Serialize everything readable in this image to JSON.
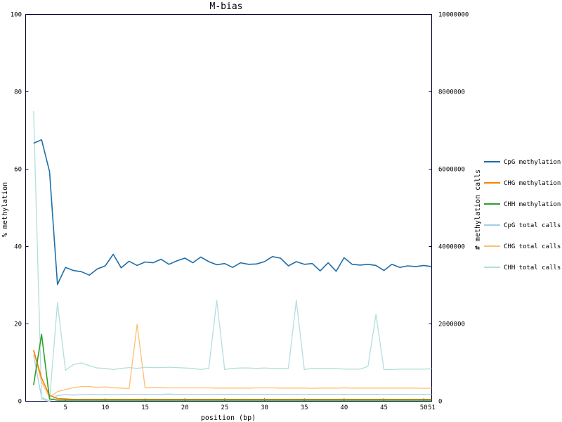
{
  "chart_data": {
    "type": "line",
    "title": "M-bias",
    "xlabel": "position (bp)",
    "ylabel": "% methylation",
    "y2label": "# methylation calls",
    "xlim": [
      0,
      51
    ],
    "ylim": [
      0,
      100
    ],
    "y2lim": [
      0,
      10000000
    ],
    "xticks": [
      {
        "value": 5,
        "label": "5"
      },
      {
        "value": 10,
        "label": "10"
      },
      {
        "value": 15,
        "label": "15"
      },
      {
        "value": 20,
        "label": "20"
      },
      {
        "value": 25,
        "label": "25"
      },
      {
        "value": 30,
        "label": "30"
      },
      {
        "value": 35,
        "label": "35"
      },
      {
        "value": 40,
        "label": "40"
      },
      {
        "value": 45,
        "label": "45"
      },
      {
        "value": 50,
        "label": "50"
      },
      {
        "value": 51,
        "label": "51"
      }
    ],
    "yticks": [
      {
        "value": 0,
        "label": "0"
      },
      {
        "value": 20,
        "label": "20"
      },
      {
        "value": 40,
        "label": "40"
      },
      {
        "value": 60,
        "label": "60"
      },
      {
        "value": 80,
        "label": "80"
      },
      {
        "value": 100,
        "label": "100"
      }
    ],
    "y2ticks": [
      {
        "value": 0,
        "label": "0"
      },
      {
        "value": 2000000,
        "label": "2000000"
      },
      {
        "value": 4000000,
        "label": "4000000"
      },
      {
        "value": 6000000,
        "label": "6000000"
      },
      {
        "value": 8000000,
        "label": "8000000"
      },
      {
        "value": 10000000,
        "label": "10000000"
      }
    ],
    "x": [
      1,
      2,
      3,
      4,
      5,
      6,
      7,
      8,
      9,
      10,
      11,
      12,
      13,
      14,
      15,
      16,
      17,
      18,
      19,
      20,
      21,
      22,
      23,
      24,
      25,
      26,
      27,
      28,
      29,
      30,
      31,
      32,
      33,
      34,
      35,
      36,
      37,
      38,
      39,
      40,
      41,
      42,
      43,
      44,
      45,
      46,
      47,
      48,
      49,
      50,
      51
    ],
    "legend_position": "right",
    "series": [
      {
        "name": "CpG methylation",
        "axis": "left",
        "color": "#1f6ea8",
        "values": [
          66.7,
          67.6,
          59.4,
          30.2,
          34.6,
          33.8,
          33.5,
          32.6,
          34.2,
          35.0,
          38.0,
          34.5,
          36.2,
          35.1,
          36.0,
          35.8,
          36.7,
          35.4,
          36.3,
          37.0,
          35.8,
          37.3,
          36.1,
          35.3,
          35.6,
          34.6,
          35.8,
          35.4,
          35.5,
          36.1,
          37.4,
          37.0,
          35.0,
          36.1,
          35.4,
          35.6,
          33.7,
          35.8,
          33.6,
          37.1,
          35.4,
          35.2,
          35.4,
          35.1,
          33.8,
          35.4,
          34.6,
          35.0,
          34.8,
          35.1,
          34.8
        ]
      },
      {
        "name": "CHG methylation",
        "axis": "left",
        "color": "#ff7f00",
        "values": [
          13.2,
          6.0,
          1.5,
          0.7,
          0.6,
          0.5,
          0.5,
          0.5,
          0.5,
          0.5,
          0.5,
          0.5,
          0.5,
          0.5,
          0.5,
          0.5,
          0.5,
          0.5,
          0.5,
          0.5,
          0.5,
          0.5,
          0.5,
          0.5,
          0.5,
          0.5,
          0.5,
          0.5,
          0.5,
          0.5,
          0.5,
          0.5,
          0.5,
          0.5,
          0.5,
          0.5,
          0.5,
          0.5,
          0.5,
          0.5,
          0.5,
          0.5,
          0.5,
          0.5,
          0.5,
          0.5,
          0.5,
          0.5,
          0.5,
          0.5,
          0.5
        ]
      },
      {
        "name": "CHH methylation",
        "axis": "left",
        "color": "#2ca02c",
        "values": [
          4.2,
          17.3,
          0.6,
          0.3,
          0.3,
          0.3,
          0.3,
          0.3,
          0.3,
          0.3,
          0.3,
          0.3,
          0.3,
          0.3,
          0.3,
          0.3,
          0.3,
          0.3,
          0.3,
          0.3,
          0.3,
          0.3,
          0.3,
          0.3,
          0.3,
          0.3,
          0.3,
          0.3,
          0.3,
          0.3,
          0.3,
          0.3,
          0.3,
          0.3,
          0.3,
          0.3,
          0.3,
          0.3,
          0.3,
          0.3,
          0.3,
          0.3,
          0.3,
          0.3,
          0.3,
          0.3,
          0.3,
          0.3,
          0.3,
          0.3,
          0.3
        ]
      },
      {
        "name": "CpG total calls",
        "axis": "right",
        "color": "#a6cee3",
        "values": [
          1200000,
          100000,
          0,
          150000,
          170000,
          160000,
          170000,
          180000,
          170000,
          175000,
          170000,
          175000,
          180000,
          175000,
          180000,
          175000,
          180000,
          185000,
          180000,
          180000,
          175000,
          180000,
          175000,
          180000,
          175000,
          180000,
          175000,
          180000,
          175000,
          180000,
          175000,
          180000,
          175000,
          180000,
          175000,
          180000,
          175000,
          180000,
          175000,
          180000,
          175000,
          180000,
          175000,
          180000,
          175000,
          180000,
          175000,
          180000,
          175000,
          180000,
          175000
        ]
      },
      {
        "name": "CHG total calls",
        "axis": "right",
        "color": "#fdbf6f",
        "values": [
          1300000,
          500000,
          100000,
          250000,
          300000,
          350000,
          380000,
          380000,
          360000,
          370000,
          350000,
          340000,
          330000,
          1990000,
          350000,
          350000,
          350000,
          345000,
          345000,
          345000,
          345000,
          345000,
          345000,
          340000,
          340000,
          340000,
          340000,
          340000,
          345000,
          345000,
          345000,
          340000,
          340000,
          340000,
          340000,
          335000,
          340000,
          340000,
          340000,
          345000,
          340000,
          340000,
          340000,
          340000,
          340000,
          340000,
          340000,
          340000,
          340000,
          335000,
          340000
        ]
      },
      {
        "name": "CHH total calls",
        "axis": "right",
        "color": "#b2dfdb",
        "values": [
          7500000,
          50000,
          0,
          2550000,
          800000,
          950000,
          990000,
          920000,
          860000,
          850000,
          820000,
          850000,
          870000,
          850000,
          880000,
          870000,
          870000,
          880000,
          870000,
          860000,
          850000,
          820000,
          850000,
          2610000,
          820000,
          850000,
          860000,
          860000,
          850000,
          860000,
          850000,
          850000,
          850000,
          2610000,
          820000,
          850000,
          850000,
          850000,
          850000,
          830000,
          830000,
          830000,
          900000,
          2250000,
          820000,
          820000,
          830000,
          830000,
          830000,
          830000,
          840000
        ]
      }
    ]
  }
}
